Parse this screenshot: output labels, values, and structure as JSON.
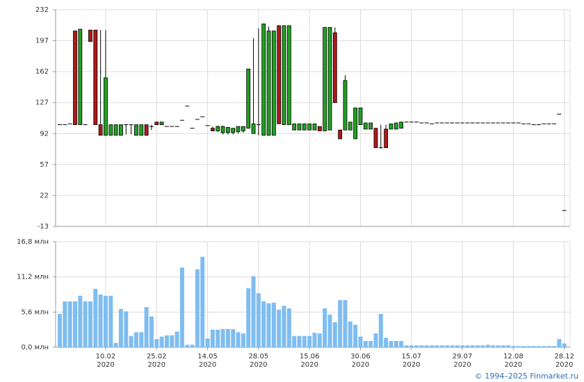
{
  "chart_data": [
    {
      "type": "candlestick",
      "ylim": [
        -13,
        232
      ],
      "yticks": [
        232,
        197,
        162,
        127,
        92,
        57,
        22,
        -13
      ],
      "grid": true,
      "up_color": "#22a022",
      "down_color": "#b01818",
      "open": [
        102,
        102,
        103,
        208,
        102,
        102,
        209,
        209,
        102,
        90,
        90,
        90,
        90,
        102,
        102,
        90,
        90,
        102,
        100,
        105,
        102,
        100,
        100,
        100,
        107,
        123,
        98,
        108,
        111,
        101,
        98,
        95,
        93,
        93,
        93,
        94,
        95,
        98,
        92,
        102,
        90,
        90,
        90,
        214,
        102,
        102,
        96,
        96,
        96,
        96,
        96,
        100,
        95,
        96,
        206,
        96,
        96,
        96,
        86,
        102,
        97,
        97,
        98,
        76,
        97,
        97,
        97,
        98,
        105,
        105,
        105,
        104,
        104,
        103,
        104,
        104,
        104,
        104,
        104,
        104,
        104,
        104,
        104,
        104,
        104,
        104,
        104,
        104,
        104,
        104,
        104,
        103,
        103,
        102,
        102,
        103,
        103,
        103,
        114,
        5
      ],
      "high": [
        102,
        102,
        103,
        208,
        210,
        102,
        209,
        209,
        209,
        209,
        102,
        102,
        102,
        102,
        102,
        102,
        102,
        102,
        102,
        105,
        105,
        100,
        100,
        100,
        107,
        123,
        98,
        108,
        111,
        101,
        100,
        101,
        101,
        99,
        98,
        100,
        100,
        165,
        200,
        211,
        216,
        213,
        208,
        214,
        214,
        214,
        103,
        103,
        103,
        103,
        103,
        100,
        212,
        212,
        212,
        96,
        158,
        105,
        121,
        121,
        104,
        104,
        98,
        102,
        102,
        103,
        104,
        105,
        105,
        105,
        105,
        104,
        104,
        103,
        104,
        104,
        104,
        104,
        104,
        104,
        104,
        104,
        104,
        104,
        104,
        104,
        104,
        104,
        104,
        104,
        104,
        103,
        103,
        102,
        102,
        103,
        103,
        103,
        114,
        5
      ],
      "low": [
        102,
        102,
        103,
        102,
        102,
        102,
        196,
        102,
        90,
        90,
        90,
        90,
        90,
        91,
        91,
        90,
        90,
        90,
        96,
        102,
        102,
        100,
        100,
        100,
        107,
        123,
        98,
        108,
        111,
        101,
        95,
        94,
        91,
        91,
        91,
        92,
        93,
        98,
        92,
        90,
        90,
        90,
        90,
        103,
        102,
        102,
        96,
        96,
        96,
        96,
        96,
        95,
        95,
        96,
        127,
        86,
        96,
        96,
        86,
        102,
        97,
        97,
        76,
        75,
        76,
        97,
        97,
        98,
        105,
        105,
        105,
        104,
        104,
        103,
        104,
        104,
        104,
        104,
        104,
        104,
        104,
        104,
        104,
        104,
        104,
        104,
        104,
        104,
        104,
        104,
        104,
        103,
        103,
        102,
        102,
        103,
        103,
        103,
        114,
        5
      ],
      "close": [
        102,
        102,
        103,
        102,
        210,
        102,
        196,
        102,
        90,
        155,
        102,
        102,
        102,
        102,
        102,
        102,
        102,
        90,
        100,
        102,
        105,
        100,
        100,
        100,
        107,
        123,
        98,
        108,
        111,
        101,
        95,
        100,
        100,
        99,
        98,
        100,
        100,
        165,
        103,
        102,
        216,
        208,
        208,
        103,
        214,
        214,
        103,
        103,
        103,
        103,
        103,
        95,
        212,
        212,
        127,
        86,
        152,
        105,
        121,
        121,
        104,
        104,
        76,
        76,
        76,
        103,
        104,
        105,
        105,
        105,
        105,
        104,
        104,
        103,
        104,
        104,
        104,
        104,
        104,
        104,
        104,
        104,
        104,
        104,
        104,
        104,
        104,
        104,
        104,
        104,
        104,
        103,
        103,
        102,
        102,
        103,
        103,
        103,
        114,
        5
      ]
    },
    {
      "type": "bar",
      "color": "#7fbdf0",
      "grid": true,
      "ylim": [
        0,
        16.8
      ],
      "yticks": [
        {
          "value": 0,
          "label": "0,0 млн"
        },
        {
          "value": 5.6,
          "label": "5,6 млн"
        },
        {
          "value": 11.2,
          "label": "11,2 млн"
        },
        {
          "value": 16.8,
          "label": "16,8 млн"
        }
      ],
      "categories": [
        null,
        null,
        null,
        null,
        null,
        null,
        null,
        null,
        null,
        [
          "10.02",
          "2020"
        ],
        null,
        null,
        null,
        null,
        null,
        null,
        null,
        null,
        null,
        [
          "25.02",
          "2020"
        ],
        null,
        null,
        null,
        null,
        null,
        null,
        null,
        null,
        null,
        [
          "14.05",
          "2020"
        ],
        null,
        null,
        null,
        null,
        null,
        null,
        null,
        null,
        null,
        [
          "28.05",
          "2020"
        ],
        null,
        null,
        null,
        null,
        null,
        null,
        null,
        null,
        null,
        [
          "15.06",
          "2020"
        ],
        null,
        null,
        null,
        null,
        null,
        null,
        null,
        null,
        null,
        [
          "30.06",
          "2020"
        ],
        null,
        null,
        null,
        null,
        null,
        null,
        null,
        null,
        null,
        [
          "15.07",
          "2020"
        ],
        null,
        null,
        null,
        null,
        null,
        null,
        null,
        null,
        null,
        [
          "29.07",
          "2020"
        ],
        null,
        null,
        null,
        null,
        null,
        null,
        null,
        null,
        null,
        [
          "12.08",
          "2020"
        ],
        null,
        null,
        null,
        null,
        null,
        null,
        null,
        null,
        null,
        [
          "28.12",
          "2020"
        ]
      ],
      "values": [
        5.3,
        7.3,
        7.3,
        7.3,
        8.2,
        7.3,
        7.3,
        9.3,
        8.4,
        8.2,
        8.2,
        0.7,
        6.1,
        5.7,
        1.8,
        2.4,
        2.4,
        6.4,
        4.9,
        1.3,
        1.7,
        1.9,
        1.9,
        2.5,
        12.7,
        0.4,
        0.4,
        12.4,
        14.4,
        1.4,
        2.8,
        2.8,
        2.9,
        2.9,
        2.9,
        2.4,
        2.2,
        9.4,
        11.3,
        8.6,
        7.3,
        7.0,
        7.1,
        6.0,
        6.6,
        6.2,
        1.8,
        1.8,
        1.8,
        1.8,
        2.3,
        2.2,
        6.2,
        5.2,
        4.0,
        7.5,
        7.5,
        4.1,
        3.6,
        1.7,
        1.0,
        1.0,
        2.2,
        5.3,
        1.5,
        1.0,
        1.0,
        1.0,
        0.3,
        0.3,
        0.3,
        0.3,
        0.3,
        0.3,
        0.3,
        0.3,
        0.3,
        0.3,
        0.3,
        0.3,
        0.3,
        0.3,
        0.3,
        0.3,
        0.4,
        0.3,
        0.3,
        0.3,
        0.3,
        0.2,
        0.2,
        0.2,
        0.2,
        0.2,
        0.2,
        0.2,
        0.2,
        0.2,
        1.3,
        0.6
      ]
    }
  ],
  "footer": "© 1994–2025 Finmarket.ru"
}
